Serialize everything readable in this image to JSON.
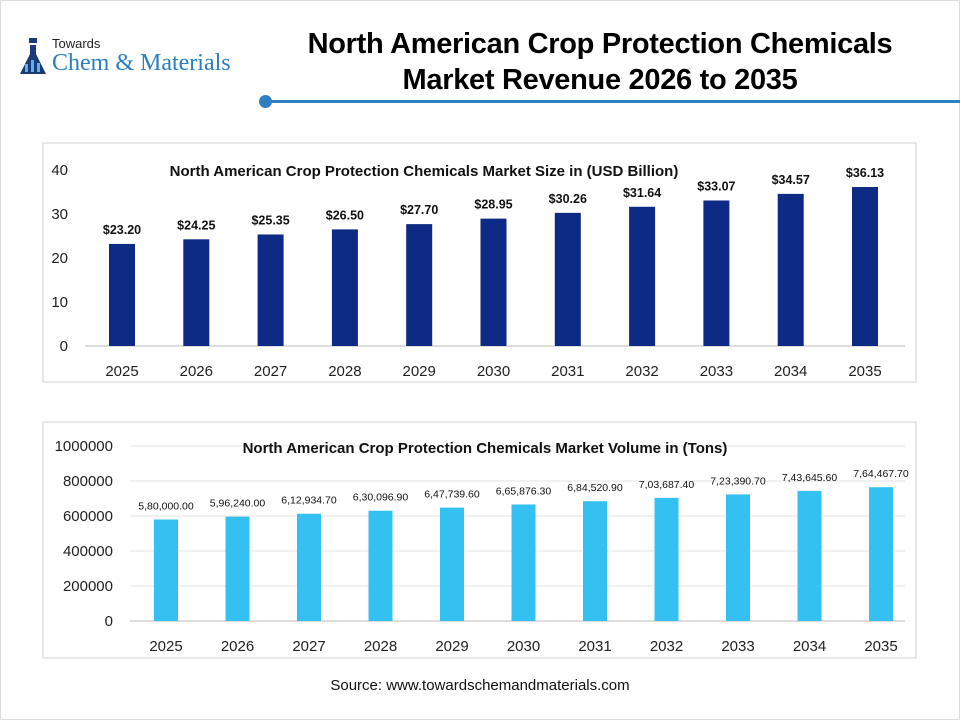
{
  "logo": {
    "line1": "Towards",
    "line2": "Chem & Materials"
  },
  "title_line1": "North American Crop Protection Chemicals",
  "title_line2": "Market Revenue 2026 to 2035",
  "source": "Source: www.towardschemandmaterials.com",
  "colors": {
    "revenue_bar": "#0d2a85",
    "volume_bar": "#35c0f2",
    "accent": "#2f80c0"
  },
  "chart_data": [
    {
      "type": "bar",
      "title": "North American Crop Protection Chemicals Market  Size in (USD Billion)",
      "categories": [
        "2025",
        "2026",
        "2027",
        "2028",
        "2029",
        "2030",
        "2031",
        "2032",
        "2033",
        "2034",
        "2035"
      ],
      "values": [
        23.2,
        24.25,
        25.35,
        26.5,
        27.7,
        28.95,
        30.26,
        31.64,
        33.07,
        34.57,
        36.13
      ],
      "data_labels": [
        "$23.20",
        "$24.25",
        "$25.35",
        "$26.50",
        "$27.70",
        "$28.95",
        "$30.26",
        "$31.64",
        "$33.07",
        "$34.57",
        "$36.13"
      ],
      "ylim": [
        0,
        40
      ],
      "yticks": [
        "0",
        "10",
        "20",
        "30",
        "40"
      ],
      "grid": false
    },
    {
      "type": "bar",
      "title": "North American Crop Protection Chemicals Market Volume in (Tons)",
      "categories": [
        "2025",
        "2026",
        "2027",
        "2028",
        "2029",
        "2030",
        "2031",
        "2032",
        "2033",
        "2034",
        "2035"
      ],
      "values": [
        580000.0,
        596240.0,
        612934.7,
        630096.9,
        647739.6,
        665876.3,
        684520.9,
        703687.4,
        723390.7,
        743645.6,
        764467.7
      ],
      "data_labels": [
        "5,80,000.00",
        "5,96,240.00",
        "6,12,934.70",
        "6,30,096.90",
        "6,47,739.60",
        "6,65,876.30",
        "6,84,520.90",
        "7,03,687.40",
        "7,23,390.70",
        "7,43,645.60",
        "7,64,467.70"
      ],
      "ylim": [
        0,
        1000000
      ],
      "yticks": [
        "0",
        "200000",
        "400000",
        "600000",
        "800000",
        "1000000"
      ],
      "grid": true
    }
  ]
}
